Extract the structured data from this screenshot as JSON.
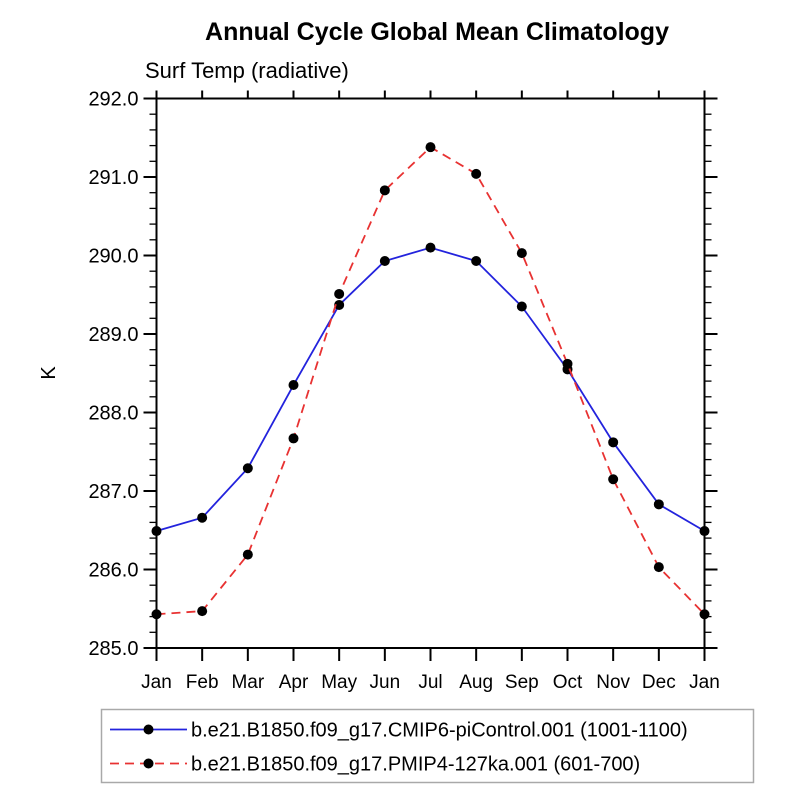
{
  "page": {
    "background": "#ffffff",
    "axis_color": "#000000",
    "legend_border_color": "#a9a9a9"
  },
  "chart_data": {
    "type": "line",
    "title": "Annual Cycle Global Mean Climatology",
    "subtitle": "Surf Temp (radiative)",
    "ylabel": "K",
    "xlabel": "",
    "categories": [
      "Jan",
      "Feb",
      "Mar",
      "Apr",
      "May",
      "Jun",
      "Jul",
      "Aug",
      "Sep",
      "Oct",
      "Nov",
      "Dec",
      "Jan"
    ],
    "ylim": [
      285.0,
      292.0
    ],
    "ytick_major": 1.0,
    "ytick_minor": 0.2,
    "ytick_label_format_decimals": 1,
    "grid": false,
    "legend_position": "bottom",
    "marker": "filled-circle",
    "marker_color": "#000000",
    "series": [
      {
        "name": "b.e21.B1850.f09_g17.CMIP6-piControl.001 (1001-1100)",
        "color": "#2323dd",
        "style": "solid",
        "values": [
          286.49,
          286.66,
          287.29,
          288.35,
          289.37,
          289.93,
          290.1,
          289.93,
          289.35,
          288.55,
          287.62,
          286.83,
          286.49
        ]
      },
      {
        "name": "b.e21.B1850.f09_g17.PMIP4-127ka.001 (601-700)",
        "color": "#e83232",
        "style": "dashed",
        "values": [
          285.43,
          285.47,
          286.19,
          287.67,
          289.51,
          290.83,
          291.38,
          291.04,
          290.03,
          288.62,
          287.15,
          286.03,
          285.43
        ]
      }
    ]
  }
}
